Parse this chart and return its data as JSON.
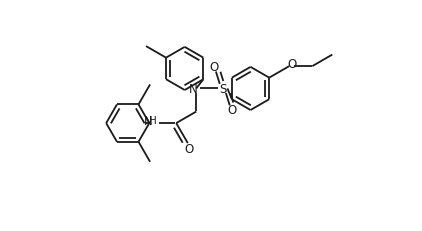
{
  "bg_color": "#ffffff",
  "line_color": "#1a1a1a",
  "lw": 1.3,
  "fig_width": 4.22,
  "fig_height": 2.32,
  "dpi": 100,
  "xlim": [
    0,
    4.22
  ],
  "ylim": [
    0,
    2.32
  ]
}
